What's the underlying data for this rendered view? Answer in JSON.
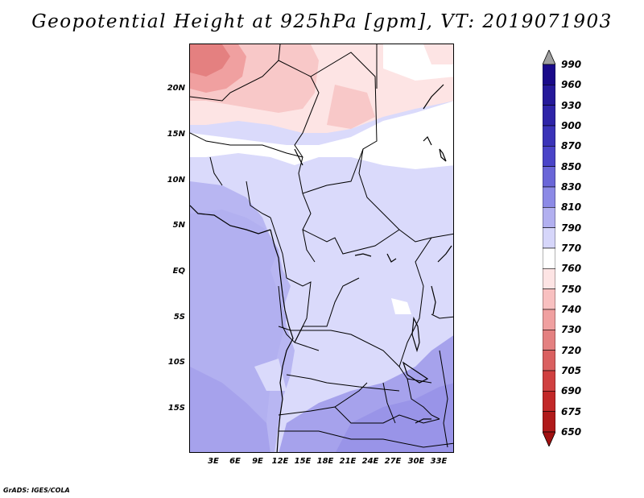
{
  "title": "Geopotential Height at 925hPa [gpm], VT: 2019071903",
  "credit": "GrADS: IGES/COLA",
  "y_axis_ticks": [
    "20N",
    "15N",
    "10N",
    "5N",
    "EQ",
    "5S",
    "10S",
    "15S"
  ],
  "x_axis_ticks": [
    "3E",
    "6E",
    "9E",
    "12E",
    "15E",
    "18E",
    "21E",
    "24E",
    "27E",
    "30E",
    "33E"
  ],
  "colorbar": {
    "labels": [
      "990",
      "960",
      "930",
      "900",
      "870",
      "850",
      "830",
      "810",
      "790",
      "770",
      "760",
      "750",
      "740",
      "730",
      "720",
      "705",
      "690",
      "675",
      "650"
    ],
    "colors": [
      "#a0a0a0",
      "#1a0a8a",
      "#25199a",
      "#2e24a8",
      "#3a33b8",
      "#4a44c8",
      "#6a66d8",
      "#8c8ae6",
      "#b2b0f0",
      "#d6d6fa",
      "#ffffff",
      "#fde4e4",
      "#f8c0c0",
      "#f0a0a0",
      "#e48080",
      "#da6060",
      "#d04040",
      "#c22828",
      "#b01a1a",
      "#a01010"
    ]
  },
  "map_colors": {
    "very_light_pink": "#fde4e4",
    "light_pink": "#f8c8c8",
    "pink": "#f0a0a0",
    "dark_pink": "#e48080",
    "white": "#ffffff",
    "pale_lavender": "#dadafb",
    "lavender": "#c2c0f4",
    "medium_lavender": "#b2b0f0",
    "purple": "#9e9aea",
    "deep_purple": "#8c88e4"
  }
}
